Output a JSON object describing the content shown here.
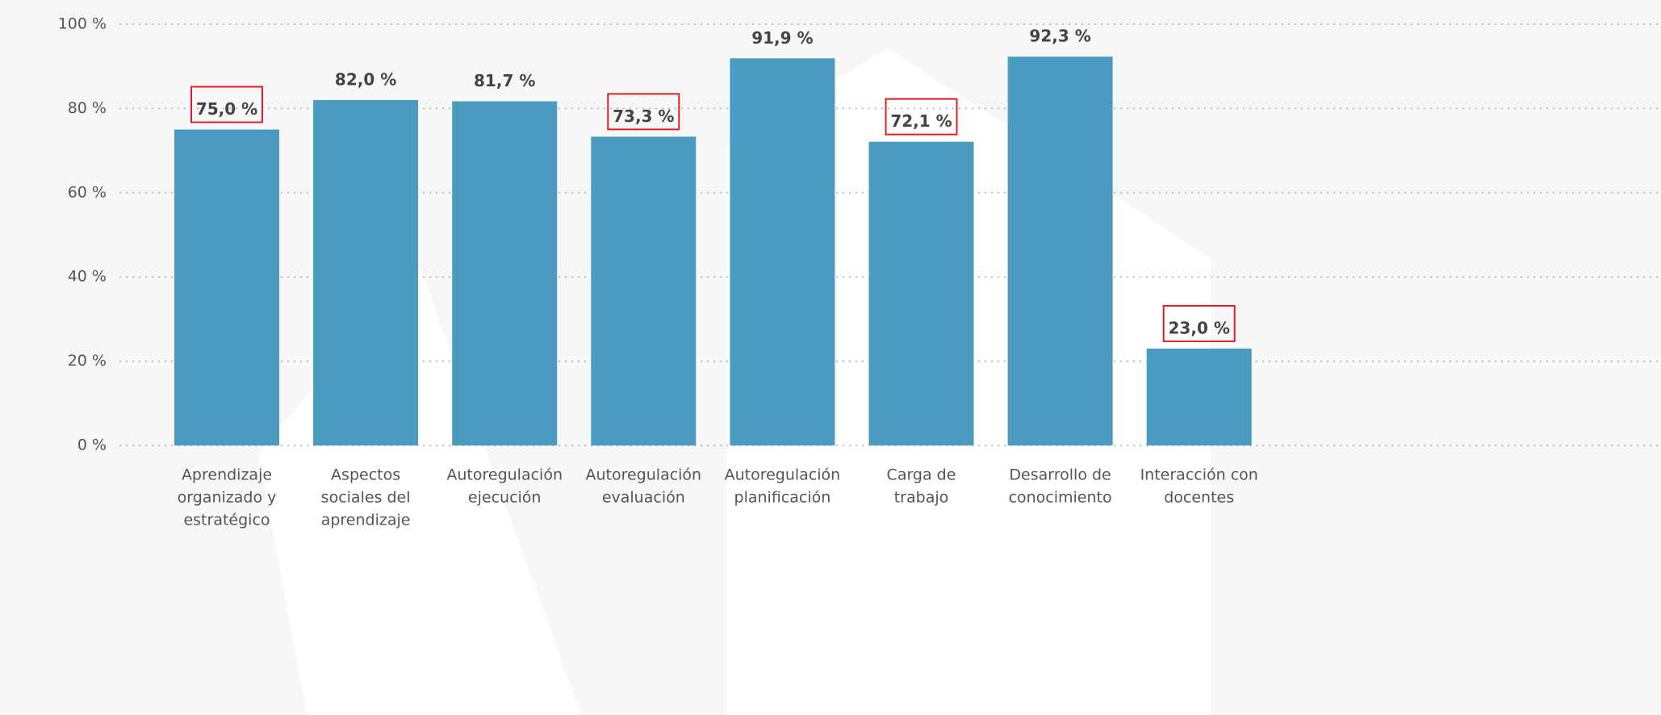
{
  "chart_data": {
    "type": "bar",
    "categories": [
      [
        "Aprendizaje",
        "organizado y",
        "estratégico"
      ],
      [
        "Aspectos",
        "sociales del",
        "aprendizaje"
      ],
      [
        "Autoregulación",
        "ejecución"
      ],
      [
        "Autoregulación",
        "evaluación"
      ],
      [
        "Autoregulación",
        "planificación"
      ],
      [
        "Carga de",
        "trabajo"
      ],
      [
        "Desarrollo de",
        "conocimiento"
      ],
      [
        "Interacción con",
        "docentes"
      ]
    ],
    "values": [
      75.0,
      82.0,
      81.7,
      73.3,
      91.9,
      72.1,
      92.3,
      23.0
    ],
    "value_labels": [
      "75,0 %",
      "82,0 %",
      "81,7 %",
      "73,3 %",
      "91,9 %",
      "72,1 %",
      "92,3 %",
      "23,0 %"
    ],
    "highlighted": [
      true,
      false,
      false,
      true,
      false,
      true,
      false,
      true
    ],
    "color": "#4a9bbf",
    "ylim": [
      0,
      100
    ],
    "yticks": [
      {
        "value": 0,
        "label": "0 %"
      },
      {
        "value": 20,
        "label": "20 %"
      },
      {
        "value": 40,
        "label": "40 %"
      },
      {
        "value": 60,
        "label": "60 %"
      },
      {
        "value": 80,
        "label": "80 %"
      },
      {
        "value": 100,
        "label": "100 %"
      }
    ],
    "grid": true
  }
}
